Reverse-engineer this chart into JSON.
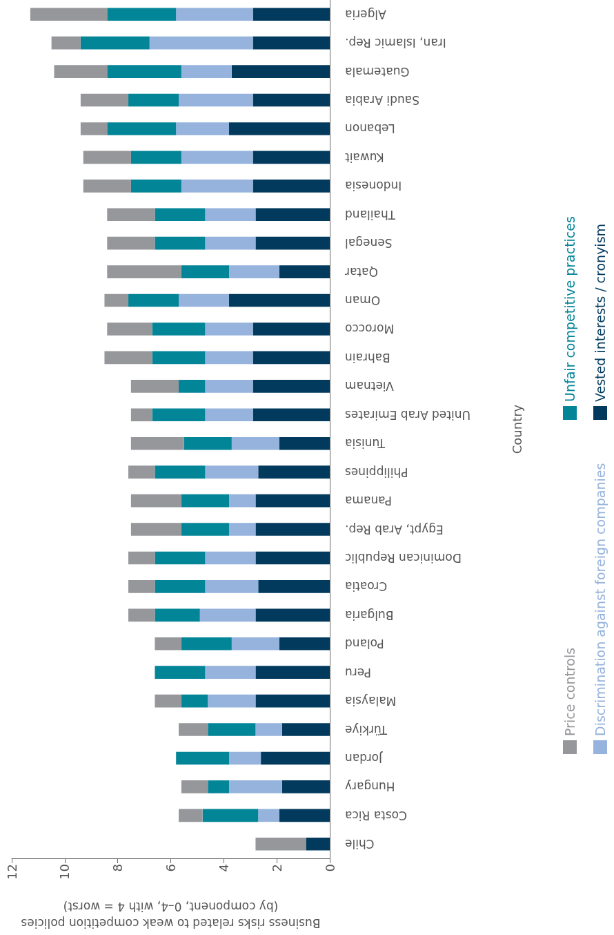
{
  "chart_data": {
    "type": "bar",
    "stacked": true,
    "orientation": "horizontal",
    "ylabel": "Country",
    "xlabel": "Business risks related to weak competition policies\n(by component, 0–4, with 4 = worst)",
    "categories": [
      "Algeria",
      "Iran, Islamic Rep.",
      "Guatemala",
      "Saudi Arabia",
      "Lebanon",
      "Kuwait",
      "Indonesia",
      "Thailand",
      "Senegal",
      "Qatar",
      "Oman",
      "Morocco",
      "Bahrain",
      "Vietnam",
      "United Arab Emirates",
      "Tunisia",
      "Philippines",
      "Panama",
      "Egypt, Arab Rep.",
      "Dominican Republic",
      "Croatia",
      "Bulgaria",
      "Poland",
      "Peru",
      "Malaysia",
      "Türkiye",
      "Jordan",
      "Hungary",
      "Costa Rica",
      "Chile"
    ],
    "series": [
      {
        "name": "Vested interests / cronyism",
        "color": "#023a5d",
        "values": [
          2.9,
          2.9,
          3.7,
          2.9,
          3.8,
          2.9,
          2.9,
          2.8,
          2.8,
          1.9,
          3.8,
          2.9,
          2.9,
          2.9,
          2.9,
          1.9,
          2.7,
          2.8,
          2.8,
          2.8,
          2.7,
          2.8,
          1.9,
          2.8,
          2.8,
          1.8,
          2.6,
          1.8,
          1.9,
          0.9
        ]
      },
      {
        "name": "Discrimination against foreign companies",
        "color": "#95b3dc",
        "values": [
          2.9,
          3.9,
          1.9,
          2.8,
          2.0,
          2.7,
          2.7,
          1.9,
          1.9,
          1.9,
          1.9,
          1.8,
          1.8,
          1.8,
          1.8,
          1.8,
          2.0,
          1.0,
          1.0,
          1.9,
          2.0,
          2.1,
          1.8,
          1.9,
          1.8,
          1.0,
          1.2,
          2.0,
          0.8,
          null
        ]
      },
      {
        "name": "Unfair competitive practices",
        "color": "#038598",
        "values": [
          2.6,
          2.6,
          2.8,
          1.9,
          2.6,
          1.9,
          1.9,
          1.9,
          1.9,
          1.8,
          1.9,
          2.0,
          2.0,
          1.0,
          2.0,
          1.8,
          1.9,
          1.8,
          1.8,
          1.9,
          1.9,
          1.7,
          1.9,
          1.9,
          1.0,
          1.8,
          2.0,
          0.8,
          2.1,
          null
        ]
      },
      {
        "name": "Price controls",
        "color": "#96979b",
        "values": [
          2.9,
          1.1,
          2.0,
          1.8,
          1.0,
          1.8,
          1.8,
          1.8,
          1.8,
          2.8,
          0.9,
          1.7,
          1.8,
          1.8,
          0.8,
          2.0,
          1.0,
          1.9,
          1.9,
          1.0,
          1.0,
          1.0,
          1.0,
          null,
          1.0,
          1.1,
          null,
          1.0,
          0.9,
          1.9
        ]
      }
    ],
    "xlim": [
      12,
      0
    ],
    "xticks": [
      12,
      10,
      8,
      6,
      4,
      2,
      0
    ],
    "grid": false,
    "legend": "right"
  }
}
